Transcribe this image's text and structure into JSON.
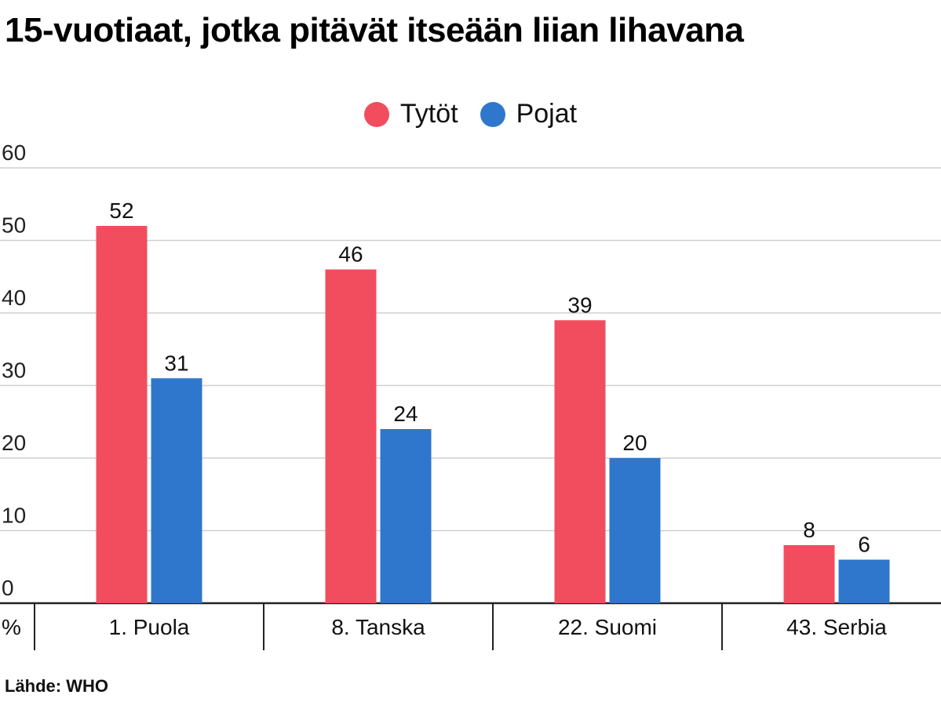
{
  "chart_data": {
    "type": "bar",
    "title": "15-vuotiaat, jotka pitävät itseään liian lihavana",
    "categories": [
      "1. Puola",
      "8. Tanska",
      "22. Suomi",
      "43. Serbia"
    ],
    "series": [
      {
        "name": "Tytöt",
        "color": "#f24d5f",
        "values": [
          52,
          46,
          39,
          8
        ]
      },
      {
        "name": "Pojat",
        "color": "#2f77cc",
        "values": [
          31,
          24,
          20,
          6
        ]
      }
    ],
    "ylim": [
      0,
      60
    ],
    "yticks": [
      0,
      10,
      20,
      30,
      40,
      50,
      60
    ],
    "yunit": "%",
    "grid": true,
    "legend_position": "top-center",
    "source": "Lähde: WHO"
  }
}
